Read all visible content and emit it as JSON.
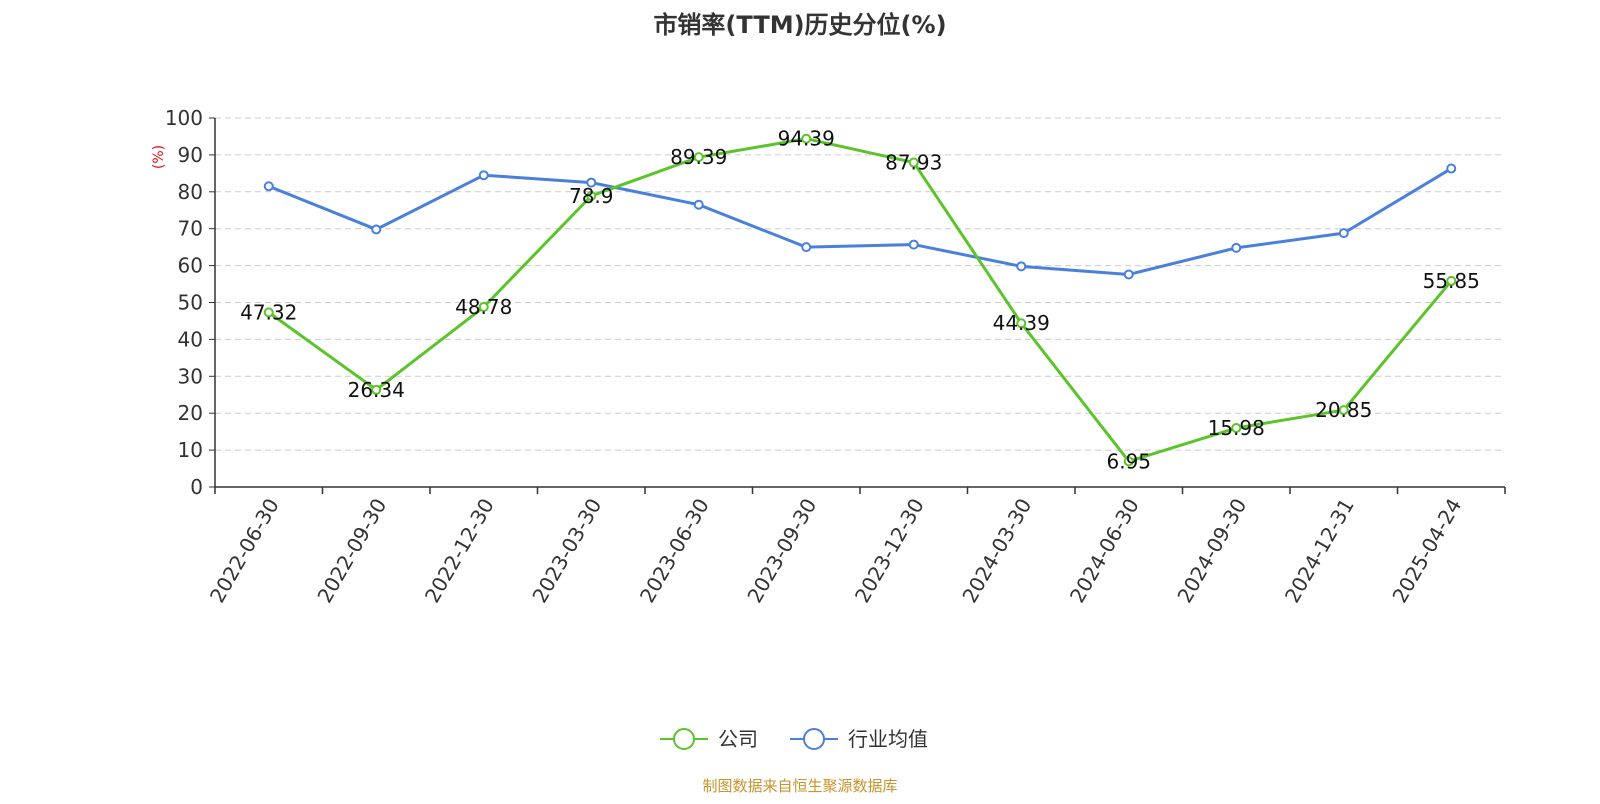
{
  "chart_data": {
    "type": "line",
    "title": "市销率(TTM)历史分位(%)",
    "y_unit": "(%)",
    "ylim": [
      0,
      100
    ],
    "y_ticks": [
      0,
      10,
      20,
      30,
      40,
      50,
      60,
      70,
      80,
      90,
      100
    ],
    "grid": true,
    "legend_position": "bottom-center",
    "categories": [
      "2022-06-30",
      "2022-09-30",
      "2022-12-30",
      "2023-03-30",
      "2023-06-30",
      "2023-09-30",
      "2023-12-30",
      "2024-03-30",
      "2024-06-30",
      "2024-09-30",
      "2024-12-31",
      "2025-04-24"
    ],
    "series": [
      {
        "name": "公司",
        "color": "#5cc42b",
        "show_labels": true,
        "values": [
          47.32,
          26.34,
          48.78,
          78.9,
          89.39,
          94.39,
          87.93,
          44.39,
          6.95,
          15.98,
          20.85,
          55.85
        ]
      },
      {
        "name": "行业均值",
        "color": "#4a7fdc",
        "show_labels": false,
        "values": [
          81.5,
          69.8,
          84.5,
          82.5,
          76.5,
          65.0,
          65.7,
          59.8,
          57.6,
          64.8,
          68.8,
          86.3
        ]
      }
    ],
    "source": "制图数据来自恒生聚源数据库"
  }
}
